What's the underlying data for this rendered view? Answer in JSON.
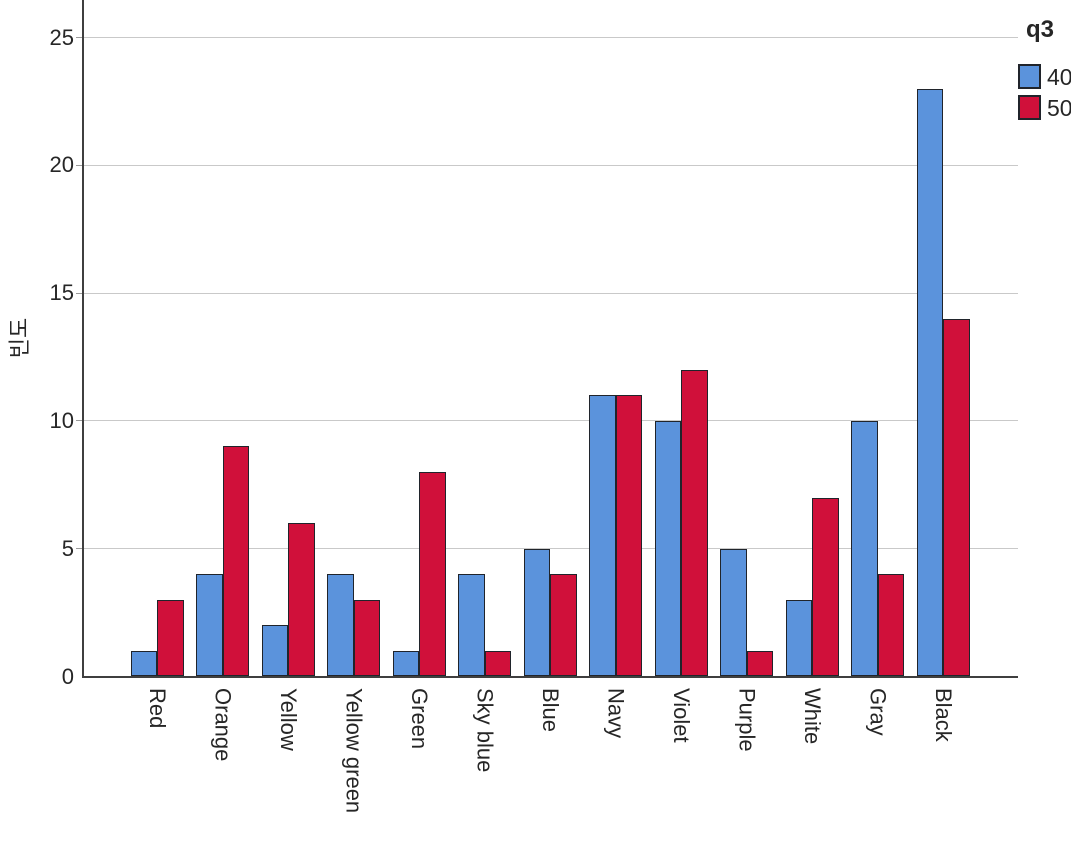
{
  "chart_data": {
    "type": "bar",
    "title": "",
    "ylabel": "빈도",
    "xlabel": "",
    "legend_title": "q3",
    "legend_position": "top-right",
    "grid": true,
    "ylim": [
      0,
      26.5
    ],
    "yticks": [
      0,
      5,
      10,
      15,
      20,
      25
    ],
    "categories": [
      "Red",
      "Orange",
      "Yellow",
      "Yellow green",
      "Green",
      "Sky blue",
      "Blue",
      "Navy",
      "Violet",
      "Purple",
      "White",
      "Gray",
      "Black"
    ],
    "series": [
      {
        "name": "40",
        "color": "#5B93DC",
        "values": [
          1,
          4,
          2,
          4,
          1,
          4,
          5,
          11,
          10,
          5,
          3,
          10,
          23
        ]
      },
      {
        "name": "50",
        "color": "#D0103A",
        "values": [
          3,
          9,
          6,
          3,
          8,
          1,
          4,
          11,
          12,
          1,
          7,
          4,
          14
        ]
      }
    ],
    "colors": {
      "bar_outline": "#20242B",
      "gridline": "#C9C9C9",
      "axis": "#3F3F3F",
      "text": "#262626"
    }
  }
}
